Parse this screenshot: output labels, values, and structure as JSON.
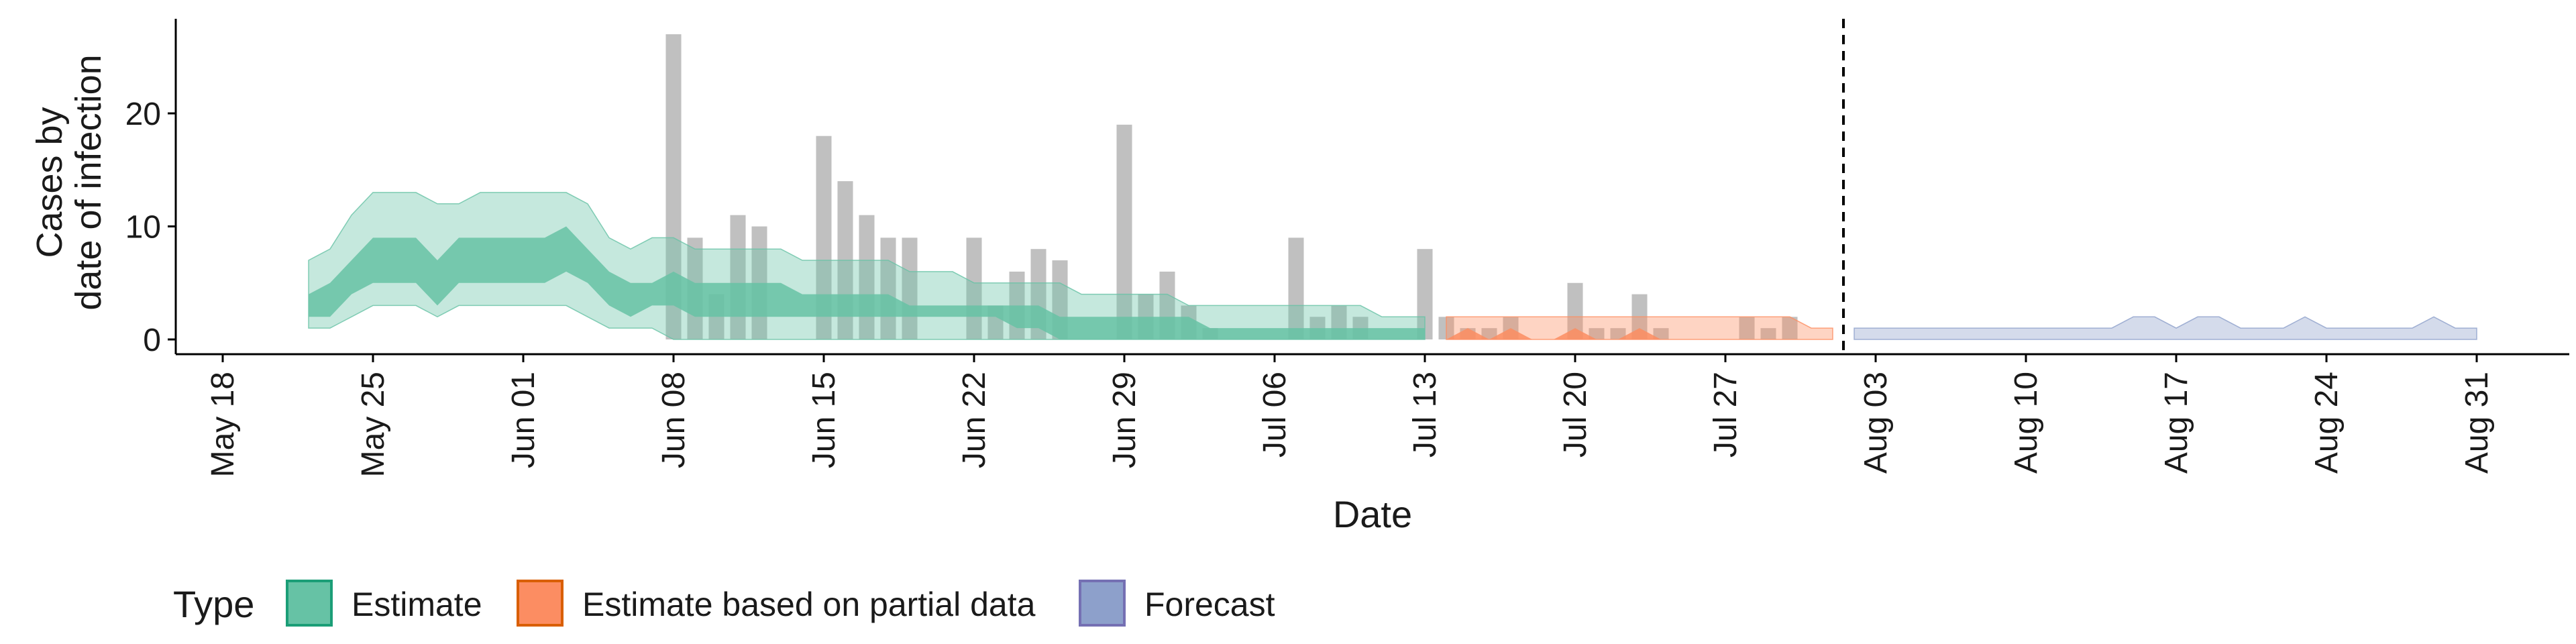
{
  "chart_data": {
    "type": "area",
    "title": "",
    "xlabel": "Date",
    "ylabel_lines": [
      "Cases by",
      "date of infection"
    ],
    "ylim": [
      -1,
      29
    ],
    "y_ticks": [
      0,
      10,
      20
    ],
    "x_start": "2020-05-17",
    "x_end": "2020-09-05",
    "x_ticks": [
      {
        "date": "2020-05-18",
        "label": "May 18"
      },
      {
        "date": "2020-05-25",
        "label": "May 25"
      },
      {
        "date": "2020-06-01",
        "label": "Jun 01"
      },
      {
        "date": "2020-06-08",
        "label": "Jun 08"
      },
      {
        "date": "2020-06-15",
        "label": "Jun 15"
      },
      {
        "date": "2020-06-22",
        "label": "Jun 22"
      },
      {
        "date": "2020-06-29",
        "label": "Jun 29"
      },
      {
        "date": "2020-07-06",
        "label": "Jul 06"
      },
      {
        "date": "2020-07-13",
        "label": "Jul 13"
      },
      {
        "date": "2020-07-20",
        "label": "Jul 20"
      },
      {
        "date": "2020-07-27",
        "label": "Jul 27"
      },
      {
        "date": "2020-08-03",
        "label": "Aug 03"
      },
      {
        "date": "2020-08-10",
        "label": "Aug 10"
      },
      {
        "date": "2020-08-17",
        "label": "Aug 17"
      },
      {
        "date": "2020-08-24",
        "label": "Aug 24"
      },
      {
        "date": "2020-08-31",
        "label": "Aug 31"
      }
    ],
    "vline_date": "2020-08-01",
    "bar_color": "#bdbdbd",
    "bars": [
      {
        "date": "2020-06-08",
        "value": 27
      },
      {
        "date": "2020-06-09",
        "value": 9
      },
      {
        "date": "2020-06-10",
        "value": 4
      },
      {
        "date": "2020-06-11",
        "value": 11
      },
      {
        "date": "2020-06-12",
        "value": 10
      },
      {
        "date": "2020-06-15",
        "value": 18
      },
      {
        "date": "2020-06-16",
        "value": 14
      },
      {
        "date": "2020-06-17",
        "value": 11
      },
      {
        "date": "2020-06-18",
        "value": 9
      },
      {
        "date": "2020-06-19",
        "value": 9
      },
      {
        "date": "2020-06-22",
        "value": 9
      },
      {
        "date": "2020-06-23",
        "value": 3
      },
      {
        "date": "2020-06-24",
        "value": 6
      },
      {
        "date": "2020-06-25",
        "value": 8
      },
      {
        "date": "2020-06-26",
        "value": 7
      },
      {
        "date": "2020-06-29",
        "value": 19
      },
      {
        "date": "2020-06-30",
        "value": 4
      },
      {
        "date": "2020-07-01",
        "value": 6
      },
      {
        "date": "2020-07-02",
        "value": 3
      },
      {
        "date": "2020-07-03",
        "value": 1
      },
      {
        "date": "2020-07-07",
        "value": 9
      },
      {
        "date": "2020-07-08",
        "value": 2
      },
      {
        "date": "2020-07-09",
        "value": 3
      },
      {
        "date": "2020-07-10",
        "value": 2
      },
      {
        "date": "2020-07-13",
        "value": 8
      },
      {
        "date": "2020-07-14",
        "value": 2
      },
      {
        "date": "2020-07-15",
        "value": 1
      },
      {
        "date": "2020-07-16",
        "value": 1
      },
      {
        "date": "2020-07-17",
        "value": 2
      },
      {
        "date": "2020-07-20",
        "value": 5
      },
      {
        "date": "2020-07-21",
        "value": 1
      },
      {
        "date": "2020-07-22",
        "value": 1
      },
      {
        "date": "2020-07-23",
        "value": 4
      },
      {
        "date": "2020-07-24",
        "value": 1
      },
      {
        "date": "2020-07-28",
        "value": 2
      },
      {
        "date": "2020-07-29",
        "value": 1
      },
      {
        "date": "2020-07-30",
        "value": 2
      }
    ],
    "series": [
      {
        "name": "Estimate",
        "color": "#66c2a5",
        "outer": [
          [
            "2020-05-22",
            1,
            7
          ],
          [
            "2020-05-23",
            1,
            8
          ],
          [
            "2020-05-24",
            2,
            11
          ],
          [
            "2020-05-25",
            3,
            13
          ],
          [
            "2020-05-26",
            3,
            13
          ],
          [
            "2020-05-27",
            3,
            13
          ],
          [
            "2020-05-28",
            2,
            12
          ],
          [
            "2020-05-29",
            3,
            12
          ],
          [
            "2020-05-30",
            3,
            13
          ],
          [
            "2020-05-31",
            3,
            13
          ],
          [
            "2020-06-01",
            3,
            13
          ],
          [
            "2020-06-02",
            3,
            13
          ],
          [
            "2020-06-03",
            3,
            13
          ],
          [
            "2020-06-04",
            2,
            12
          ],
          [
            "2020-06-05",
            1,
            9
          ],
          [
            "2020-06-06",
            1,
            8
          ],
          [
            "2020-06-07",
            1,
            9
          ],
          [
            "2020-06-08",
            0,
            9
          ],
          [
            "2020-06-09",
            0,
            8
          ],
          [
            "2020-06-10",
            0,
            8
          ],
          [
            "2020-06-11",
            0,
            8
          ],
          [
            "2020-06-12",
            0,
            8
          ],
          [
            "2020-06-13",
            0,
            8
          ],
          [
            "2020-06-14",
            0,
            7
          ],
          [
            "2020-06-15",
            0,
            7
          ],
          [
            "2020-06-16",
            0,
            7
          ],
          [
            "2020-06-17",
            0,
            7
          ],
          [
            "2020-06-18",
            0,
            7
          ],
          [
            "2020-06-19",
            0,
            6
          ],
          [
            "2020-06-20",
            0,
            6
          ],
          [
            "2020-06-21",
            0,
            6
          ],
          [
            "2020-06-22",
            0,
            5
          ],
          [
            "2020-06-23",
            0,
            5
          ],
          [
            "2020-06-24",
            0,
            5
          ],
          [
            "2020-06-25",
            0,
            5
          ],
          [
            "2020-06-26",
            0,
            5
          ],
          [
            "2020-06-27",
            0,
            4
          ],
          [
            "2020-06-28",
            0,
            4
          ],
          [
            "2020-06-29",
            0,
            4
          ],
          [
            "2020-06-30",
            0,
            4
          ],
          [
            "2020-07-01",
            0,
            4
          ],
          [
            "2020-07-02",
            0,
            3
          ],
          [
            "2020-07-03",
            0,
            3
          ],
          [
            "2020-07-04",
            0,
            3
          ],
          [
            "2020-07-05",
            0,
            3
          ],
          [
            "2020-07-06",
            0,
            3
          ],
          [
            "2020-07-07",
            0,
            3
          ],
          [
            "2020-07-08",
            0,
            3
          ],
          [
            "2020-07-09",
            0,
            3
          ],
          [
            "2020-07-10",
            0,
            3
          ],
          [
            "2020-07-11",
            0,
            2
          ],
          [
            "2020-07-12",
            0,
            2
          ],
          [
            "2020-07-13",
            0,
            2
          ]
        ],
        "inner": [
          [
            "2020-05-22",
            2,
            4
          ],
          [
            "2020-05-23",
            2,
            5
          ],
          [
            "2020-05-24",
            4,
            7
          ],
          [
            "2020-05-25",
            5,
            9
          ],
          [
            "2020-05-26",
            5,
            9
          ],
          [
            "2020-05-27",
            5,
            9
          ],
          [
            "2020-05-28",
            3,
            7
          ],
          [
            "2020-05-29",
            5,
            9
          ],
          [
            "2020-05-30",
            5,
            9
          ],
          [
            "2020-05-31",
            5,
            9
          ],
          [
            "2020-06-01",
            5,
            9
          ],
          [
            "2020-06-02",
            5,
            9
          ],
          [
            "2020-06-03",
            6,
            10
          ],
          [
            "2020-06-04",
            5,
            8
          ],
          [
            "2020-06-05",
            3,
            6
          ],
          [
            "2020-06-06",
            2,
            5
          ],
          [
            "2020-06-07",
            3,
            5
          ],
          [
            "2020-06-08",
            3,
            6
          ],
          [
            "2020-06-09",
            2,
            5
          ],
          [
            "2020-06-10",
            2,
            5
          ],
          [
            "2020-06-11",
            2,
            5
          ],
          [
            "2020-06-12",
            2,
            5
          ],
          [
            "2020-06-13",
            2,
            5
          ],
          [
            "2020-06-14",
            2,
            4
          ],
          [
            "2020-06-15",
            2,
            4
          ],
          [
            "2020-06-16",
            2,
            4
          ],
          [
            "2020-06-17",
            2,
            4
          ],
          [
            "2020-06-18",
            2,
            4
          ],
          [
            "2020-06-19",
            2,
            3
          ],
          [
            "2020-06-20",
            2,
            3
          ],
          [
            "2020-06-21",
            2,
            3
          ],
          [
            "2020-06-22",
            2,
            3
          ],
          [
            "2020-06-23",
            2,
            3
          ],
          [
            "2020-06-24",
            1,
            3
          ],
          [
            "2020-06-25",
            1,
            3
          ],
          [
            "2020-06-26",
            0,
            2
          ],
          [
            "2020-06-27",
            0,
            2
          ],
          [
            "2020-06-28",
            0,
            2
          ],
          [
            "2020-06-29",
            0,
            2
          ],
          [
            "2020-06-30",
            0,
            2
          ],
          [
            "2020-07-01",
            0,
            2
          ],
          [
            "2020-07-02",
            0,
            2
          ],
          [
            "2020-07-03",
            0,
            1
          ],
          [
            "2020-07-04",
            0,
            1
          ],
          [
            "2020-07-05",
            0,
            1
          ],
          [
            "2020-07-06",
            0,
            1
          ],
          [
            "2020-07-07",
            0,
            1
          ],
          [
            "2020-07-08",
            0,
            1
          ],
          [
            "2020-07-09",
            0,
            1
          ],
          [
            "2020-07-10",
            0,
            1
          ],
          [
            "2020-07-11",
            0,
            1
          ],
          [
            "2020-07-12",
            0,
            1
          ],
          [
            "2020-07-13",
            0,
            1
          ]
        ]
      },
      {
        "name": "Estimate based on partial data",
        "color": "#fc8d62",
        "outer": [
          [
            "2020-07-14",
            0,
            2
          ],
          [
            "2020-07-15",
            0,
            2
          ],
          [
            "2020-07-16",
            0,
            2
          ],
          [
            "2020-07-17",
            0,
            2
          ],
          [
            "2020-07-18",
            0,
            2
          ],
          [
            "2020-07-19",
            0,
            2
          ],
          [
            "2020-07-20",
            0,
            2
          ],
          [
            "2020-07-21",
            0,
            2
          ],
          [
            "2020-07-22",
            0,
            2
          ],
          [
            "2020-07-23",
            0,
            2
          ],
          [
            "2020-07-24",
            0,
            2
          ],
          [
            "2020-07-25",
            0,
            2
          ],
          [
            "2020-07-26",
            0,
            2
          ],
          [
            "2020-07-27",
            0,
            2
          ],
          [
            "2020-07-28",
            0,
            2
          ],
          [
            "2020-07-29",
            0,
            2
          ],
          [
            "2020-07-30",
            0,
            2
          ],
          [
            "2020-07-31",
            0,
            1
          ],
          [
            "2020-08-01",
            0,
            1
          ]
        ],
        "inner": [
          [
            "2020-07-14",
            0,
            0
          ],
          [
            "2020-07-15",
            0,
            1
          ],
          [
            "2020-07-16",
            0,
            0
          ],
          [
            "2020-07-17",
            0,
            1
          ],
          [
            "2020-07-18",
            0,
            0
          ],
          [
            "2020-07-19",
            0,
            0
          ],
          [
            "2020-07-20",
            0,
            1
          ],
          [
            "2020-07-21",
            0,
            0
          ],
          [
            "2020-07-22",
            0,
            0
          ],
          [
            "2020-07-23",
            0,
            1
          ],
          [
            "2020-07-24",
            0,
            0
          ],
          [
            "2020-07-25",
            0,
            0
          ],
          [
            "2020-07-26",
            0,
            0
          ],
          [
            "2020-07-27",
            0,
            0
          ],
          [
            "2020-07-28",
            0,
            0
          ],
          [
            "2020-07-29",
            0,
            0
          ],
          [
            "2020-07-30",
            0,
            0
          ],
          [
            "2020-07-31",
            0,
            0
          ],
          [
            "2020-08-01",
            0,
            0
          ]
        ]
      },
      {
        "name": "Forecast",
        "color": "#8da0cb",
        "outer": [
          [
            "2020-08-02",
            0,
            1
          ],
          [
            "2020-08-14",
            0,
            1
          ],
          [
            "2020-08-15",
            0,
            2
          ],
          [
            "2020-08-16",
            0,
            2
          ],
          [
            "2020-08-17",
            0,
            1
          ],
          [
            "2020-08-18",
            0,
            2
          ],
          [
            "2020-08-19",
            0,
            2
          ],
          [
            "2020-08-20",
            0,
            1
          ],
          [
            "2020-08-22",
            0,
            1
          ],
          [
            "2020-08-23",
            0,
            2
          ],
          [
            "2020-08-24",
            0,
            1
          ],
          [
            "2020-08-28",
            0,
            1
          ],
          [
            "2020-08-29",
            0,
            2
          ],
          [
            "2020-08-30",
            0,
            1
          ],
          [
            "2020-08-31",
            0,
            1
          ]
        ],
        "inner": []
      }
    ],
    "legend": {
      "position": "bottom",
      "title": "Type",
      "items": [
        {
          "label": "Estimate",
          "fill": "#66c2a5",
          "border": "#1b9e77"
        },
        {
          "label": "Estimate based on partial data",
          "fill": "#fc8d62",
          "border": "#d95f02"
        },
        {
          "label": "Forecast",
          "fill": "#8da0cb",
          "border": "#7570b3"
        }
      ]
    }
  }
}
